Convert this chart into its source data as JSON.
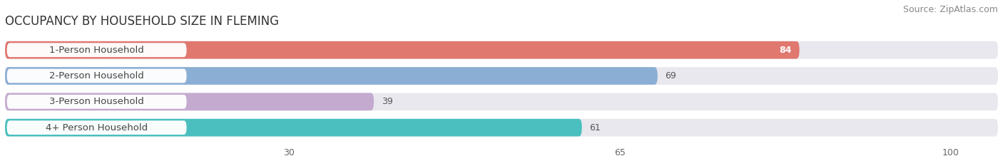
{
  "title": "OCCUPANCY BY HOUSEHOLD SIZE IN FLEMING",
  "source": "Source: ZipAtlas.com",
  "categories": [
    "1-Person Household",
    "2-Person Household",
    "3-Person Household",
    "4+ Person Household"
  ],
  "values": [
    84,
    69,
    39,
    61
  ],
  "bar_colors": [
    "#E07870",
    "#8BAED4",
    "#C4AACF",
    "#4BBFBF"
  ],
  "x_ticks": [
    30,
    65,
    100
  ],
  "x_max": 105,
  "background_color": "#ffffff",
  "bar_background_color": "#e8e8ee",
  "title_fontsize": 12,
  "source_fontsize": 9,
  "label_fontsize": 9.5,
  "value_fontsize": 9
}
